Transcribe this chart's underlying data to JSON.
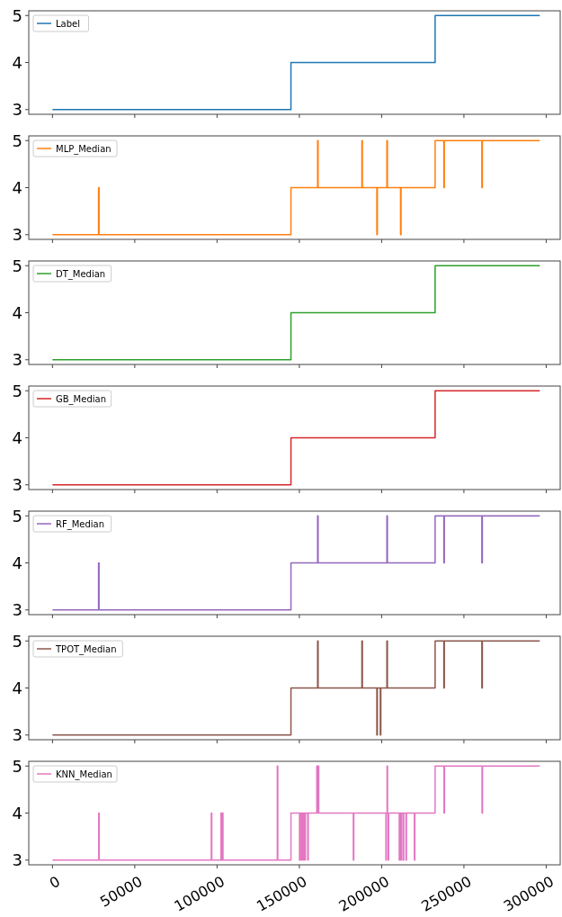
{
  "chart_data": [
    {
      "type": "step",
      "xlim": [
        -14400,
        308500
      ],
      "ylim": [
        2.9,
        5.1
      ],
      "xticks": [
        0,
        50000,
        100000,
        150000,
        200000,
        250000,
        300000
      ],
      "yticks": [
        3,
        4,
        5
      ],
      "legend": "top left",
      "tick_labels": "y",
      "series": [
        {
          "name": "Label",
          "color": "#1f77b4",
          "x": [
            0,
            144900,
            232500,
            296100
          ],
          "values": [
            3,
            4,
            5,
            5
          ]
        }
      ]
    },
    {
      "type": "step",
      "xlim": [
        -14400,
        308500
      ],
      "ylim": [
        2.9,
        5.1
      ],
      "xticks": [
        0,
        50000,
        100000,
        150000,
        200000,
        250000,
        300000
      ],
      "yticks": [
        3,
        4,
        5
      ],
      "legend": "top left",
      "tick_labels": "y",
      "series": [
        {
          "name": "MLP_Median",
          "color": "#ff7f0e",
          "x": [
            0,
            28000,
            28300,
            144900,
            161100,
            161400,
            188000,
            188300,
            197100,
            197400,
            203200,
            203500,
            211500,
            211800,
            232500,
            237800,
            238100,
            260900,
            261200,
            296100
          ],
          "values": [
            3,
            4,
            3,
            4,
            5,
            4,
            5,
            4,
            3,
            4,
            5,
            4,
            3,
            4,
            5,
            4,
            5,
            4,
            5,
            5
          ]
        }
      ]
    },
    {
      "type": "step",
      "xlim": [
        -14400,
        308500
      ],
      "ylim": [
        2.9,
        5.1
      ],
      "xticks": [
        0,
        50000,
        100000,
        150000,
        200000,
        250000,
        300000
      ],
      "yticks": [
        3,
        4,
        5
      ],
      "legend": "top left",
      "tick_labels": "y",
      "series": [
        {
          "name": "DT_Median",
          "color": "#2ca02c",
          "x": [
            0,
            144900,
            232500,
            296100
          ],
          "values": [
            3,
            4,
            5,
            5
          ]
        }
      ]
    },
    {
      "type": "step",
      "xlim": [
        -14400,
        308500
      ],
      "ylim": [
        2.9,
        5.1
      ],
      "xticks": [
        0,
        50000,
        100000,
        150000,
        200000,
        250000,
        300000
      ],
      "yticks": [
        3,
        4,
        5
      ],
      "legend": "top left",
      "tick_labels": "y",
      "series": [
        {
          "name": "GB_Median",
          "color": "#d62728",
          "x": [
            0,
            144900,
            232500,
            296100
          ],
          "values": [
            3,
            4,
            5,
            5
          ]
        }
      ]
    },
    {
      "type": "step",
      "xlim": [
        -14400,
        308500
      ],
      "ylim": [
        2.9,
        5.1
      ],
      "xticks": [
        0,
        50000,
        100000,
        150000,
        200000,
        250000,
        300000
      ],
      "yticks": [
        3,
        4,
        5
      ],
      "legend": "top left",
      "tick_labels": "y",
      "series": [
        {
          "name": "RF_Median",
          "color": "#9467bd",
          "x": [
            0,
            28000,
            28300,
            144900,
            161100,
            161400,
            203200,
            203500,
            232500,
            237800,
            238100,
            260900,
            261200,
            296100
          ],
          "values": [
            3,
            4,
            3,
            4,
            5,
            4,
            5,
            4,
            5,
            4,
            5,
            4,
            5,
            5
          ]
        }
      ]
    },
    {
      "type": "step",
      "xlim": [
        -14400,
        308500
      ],
      "ylim": [
        2.9,
        5.1
      ],
      "xticks": [
        0,
        50000,
        100000,
        150000,
        200000,
        250000,
        300000
      ],
      "yticks": [
        3,
        4,
        5
      ],
      "legend": "top left",
      "tick_labels": "y",
      "series": [
        {
          "name": "TPOT_Median",
          "color": "#8c564b",
          "x": [
            0,
            144900,
            161100,
            161400,
            188000,
            188300,
            197100,
            197400,
            199200,
            199500,
            203200,
            203500,
            232500,
            237800,
            238100,
            260900,
            261200,
            296100
          ],
          "values": [
            3,
            4,
            5,
            4,
            5,
            4,
            3,
            4,
            3,
            4,
            5,
            4,
            5,
            4,
            5,
            4,
            5,
            5
          ]
        }
      ]
    },
    {
      "type": "step",
      "xlim": [
        -14400,
        308500
      ],
      "ylim": [
        2.9,
        5.1
      ],
      "xticks": [
        0,
        50000,
        100000,
        150000,
        200000,
        250000,
        300000
      ],
      "yticks": [
        3,
        4,
        5
      ],
      "legend": "top left",
      "series": [
        {
          "name": "KNN_Median",
          "color": "#e377c2",
          "x": [
            0,
            28100,
            28400,
            96500,
            96800,
            102400,
            102700,
            103300,
            103600,
            136600,
            136900,
            144900,
            150100,
            150400,
            151200,
            151500,
            152300,
            152600,
            153400,
            153700,
            155100,
            155400,
            160600,
            160900,
            161500,
            161800,
            182800,
            183100,
            202600,
            202900,
            203300,
            203600,
            204000,
            204300,
            210700,
            211000,
            211800,
            212100,
            213100,
            213400,
            214800,
            215100,
            219900,
            220200,
            232500,
            237900,
            238200,
            261000,
            261300,
            296100
          ],
          "values": [
            3,
            4,
            3,
            4,
            3,
            4,
            3,
            4,
            3,
            5,
            3,
            4,
            3,
            4,
            3,
            4,
            3,
            4,
            3,
            4,
            3,
            4,
            5,
            4,
            5,
            4,
            3,
            4,
            3,
            4,
            5,
            4,
            3,
            4,
            3,
            4,
            3,
            4,
            3,
            4,
            3,
            4,
            3,
            4,
            5,
            4,
            5,
            4,
            5,
            5
          ]
        }
      ]
    }
  ]
}
